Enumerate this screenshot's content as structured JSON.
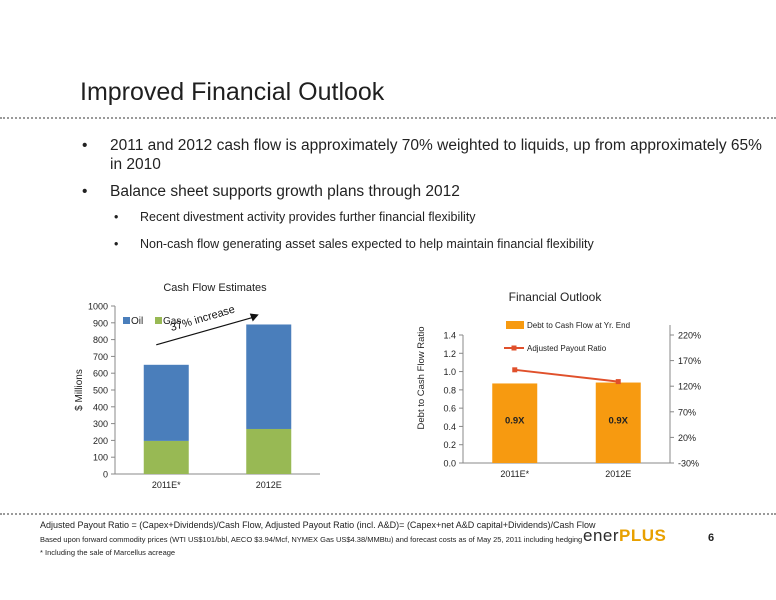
{
  "slide": {
    "title": "Improved Financial Outlook",
    "bullets": [
      "2011 and 2012 cash flow is approximately 70% weighted to liquids, up from approximately 65% in 2010",
      "Balance sheet supports growth plans through 2012"
    ],
    "sub_bullets": [
      "Recent divestment activity provides further financial flexibility",
      "Non-cash flow generating asset sales expected to help maintain financial flexibility"
    ],
    "footnotes": [
      "Adjusted Payout Ratio = (Capex+Dividends)/Cash Flow, Adjusted Payout Ratio (incl. A&D)= (Capex+net A&D capital+Dividends)/Cash Flow",
      "Based upon forward commodity prices (WTI US$101/bbl, AECO $3.94/Mcf, NYMEX Gas US$4.38/MMBtu) and forecast costs as of May 25, 2011 including hedging",
      "* Including the sale of Marcellus acreage"
    ],
    "logo_part1": "ener",
    "logo_part2": "PLUS",
    "page_number": "6",
    "colors": {
      "oil": "#4a7ebb",
      "gas": "#98b954",
      "debt_bar": "#f79a10",
      "payout_line": "#e0502b",
      "logo_accent": "#e8a000"
    }
  },
  "chart_data": [
    {
      "type": "bar",
      "stacked": true,
      "title": "Cash Flow Estimates",
      "ylabel": "$ Millions",
      "categories": [
        "2011E*",
        "2012E"
      ],
      "series": [
        {
          "name": "Oil",
          "values": [
            453,
            622
          ]
        },
        {
          "name": "Gas",
          "values": [
            197,
            268
          ]
        }
      ],
      "ylim": [
        0,
        1000
      ],
      "yticks": [
        0,
        100,
        200,
        300,
        400,
        500,
        600,
        700,
        800,
        900,
        1000
      ],
      "legend": "top-left",
      "annotation": "37% increase"
    },
    {
      "type": "bar",
      "title": "Financial Outlook",
      "ylabel": "Debt to Cash Flow Ratio",
      "categories": [
        "2011E*",
        "2012E"
      ],
      "series": [
        {
          "name": "Debt to Cash Flow at Yr. End",
          "type": "bar",
          "axis": "left",
          "values": [
            0.87,
            0.88
          ],
          "labels": [
            "0.9X",
            "0.9X"
          ]
        },
        {
          "name": "Adjusted Payout Ratio",
          "type": "line",
          "axis": "right",
          "values": [
            152,
            129
          ]
        }
      ],
      "ylim": [
        0,
        1.4
      ],
      "yticks": [
        "0.0",
        "0.2",
        "0.4",
        "0.6",
        "0.8",
        "1.0",
        "1.2",
        "1.4"
      ],
      "y2lim": [
        -30,
        220
      ],
      "y2ticks": [
        "-30%",
        "20%",
        "70%",
        "120%",
        "170%",
        "220%"
      ],
      "legend": "top"
    }
  ]
}
